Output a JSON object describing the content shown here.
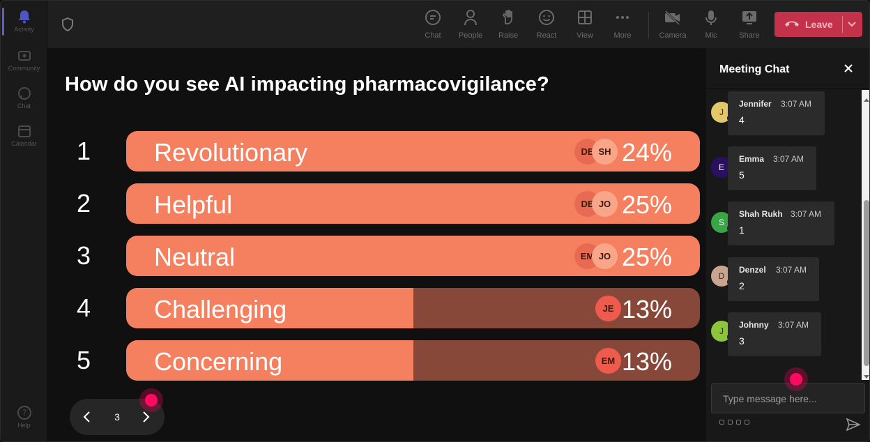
{
  "rail": {
    "items": [
      {
        "label": "Activity",
        "icon": "bell-icon",
        "active": true
      },
      {
        "label": "Community",
        "icon": "community-icon",
        "active": false
      },
      {
        "label": "Chat",
        "icon": "chat-icon",
        "active": false
      },
      {
        "label": "Calendar",
        "icon": "calendar-icon",
        "active": false
      }
    ],
    "help_label": "Help"
  },
  "toolbar": {
    "buttons": [
      {
        "label": "Chat",
        "icon": "chat-icon",
        "active": true
      },
      {
        "label": "People",
        "icon": "person-icon"
      },
      {
        "label": "Raise",
        "icon": "hand-icon"
      },
      {
        "label": "React",
        "icon": "smiley-icon"
      },
      {
        "label": "View",
        "icon": "grid-icon"
      },
      {
        "label": "More",
        "icon": "more-icon"
      },
      {
        "label": "Camera",
        "icon": "camera-off-icon"
      },
      {
        "label": "Mic",
        "icon": "mic-icon"
      },
      {
        "label": "Share",
        "icon": "share-icon"
      }
    ],
    "leave_label": "Leave",
    "leave_color": "#c4314b"
  },
  "poll": {
    "question": "How do you see AI impacting pharmacovigilance?",
    "options": [
      {
        "num": "1",
        "label": "Revolutionary",
        "pct": "24%",
        "fill": 1.0,
        "avatars": [
          "DE",
          "SH"
        ]
      },
      {
        "num": "2",
        "label": "Helpful",
        "pct": "25%",
        "fill": 1.0,
        "avatars": [
          "DE",
          "JO"
        ]
      },
      {
        "num": "3",
        "label": "Neutral",
        "pct": "25%",
        "fill": 1.0,
        "avatars": [
          "EM",
          "JO"
        ]
      },
      {
        "num": "4",
        "label": "Challenging",
        "pct": "13%",
        "fill": 0.5,
        "avatars": [
          "JE"
        ]
      },
      {
        "num": "5",
        "label": "Concerning",
        "pct": "13%",
        "fill": 0.5,
        "avatars": [
          "EM"
        ]
      }
    ],
    "bar_color": "#f5805f",
    "page": "3"
  },
  "chat": {
    "title": "Meeting Chat",
    "messages": [
      {
        "initial": "J",
        "name": "Jennifer",
        "time": "3:07 AM",
        "text": "4",
        "color": "#e3c86a",
        "textColor": "#3a3200"
      },
      {
        "initial": "E",
        "name": "Emma",
        "time": "3:07 AM",
        "text": "5",
        "color": "#2a0f63",
        "textColor": "#ffffff"
      },
      {
        "initial": "S",
        "name": "Shah Rukh",
        "time": "3:07 AM",
        "text": "1",
        "color": "#3aa545",
        "textColor": "#ffffff"
      },
      {
        "initial": "D",
        "name": "Denzel",
        "time": "3:07 AM",
        "text": "2",
        "color": "#c9a491",
        "textColor": "#3a2a20"
      },
      {
        "initial": "J",
        "name": "Johnny",
        "time": "3:07 AM",
        "text": "3",
        "color": "#8cc43c",
        "textColor": "#20330a"
      }
    ],
    "input_placeholder": "Type message here..."
  }
}
